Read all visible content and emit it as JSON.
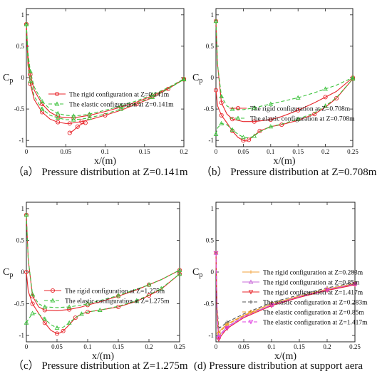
{
  "figure": {
    "captions": [
      "（a） Pressure distribution at Z=0.141m",
      "（b） Pressure distribution at Z=0.708m",
      "（c） Pressure distribution at Z=1.275m",
      "(d) Pressure distribution at support aera"
    ]
  },
  "colors": {
    "rigid": "#e8262b",
    "elastic": "#3cc23c",
    "d_rigid_1": "#f2a23a",
    "d_rigid_2": "#c86ad8",
    "d_rigid_3": "#e8262b",
    "d_elastic_1": "#555555",
    "d_elastic_2": "#f0a020",
    "d_elastic_3": "#e040e0"
  },
  "chart_data": [
    {
      "type": "line",
      "title": "",
      "xlabel": "x/(m)",
      "ylabel": "Cp",
      "xlim": [
        0,
        0.2
      ],
      "ylim": [
        1.1,
        -1.1
      ],
      "xticks": [
        "0",
        "0.05",
        "0.1",
        "0.15",
        "0.2"
      ],
      "yticks": [
        "-1",
        "-0.5",
        "0",
        "0.5",
        "1"
      ],
      "legend_position": "lower-center",
      "series": [
        {
          "name": "The rigid configuration at Z=0.141m",
          "style": "rigid",
          "x": [
            0,
            0.002,
            0.005,
            0.01,
            0.02,
            0.03,
            0.04,
            0.05,
            0.055,
            0.06,
            0.07,
            0.08,
            0.1,
            0.12,
            0.14,
            0.16,
            0.18,
            0.2
          ],
          "y": [
            0.85,
            0.2,
            -0.1,
            -0.35,
            -0.55,
            -0.66,
            -0.71,
            -0.73,
            -0.73,
            -0.72,
            -0.7,
            -0.67,
            -0.6,
            -0.52,
            -0.42,
            -0.32,
            -0.18,
            -0.02
          ]
        },
        {
          "name": "",
          "style": "rigid",
          "x": [
            0,
            0.002,
            0.005,
            0.01,
            0.02,
            0.03,
            0.04,
            0.05,
            0.06,
            0.07,
            0.08,
            0.1,
            0.12,
            0.14,
            0.16,
            0.18,
            0.2
          ],
          "y": [
            0.85,
            0.35,
            0.05,
            -0.2,
            -0.42,
            -0.55,
            -0.62,
            -0.64,
            -0.64,
            -0.62,
            -0.6,
            -0.54,
            -0.47,
            -0.39,
            -0.29,
            -0.17,
            -0.03
          ]
        },
        {
          "name": "",
          "style": "rigid",
          "x": [
            0.055,
            0.06,
            0.065,
            0.07,
            0.075
          ],
          "y": [
            -0.88,
            -0.84,
            -0.78,
            -0.74,
            -0.72
          ]
        },
        {
          "name": "The elastic configuration at Z=0.141m",
          "style": "elastic",
          "x": [
            0,
            0.002,
            0.005,
            0.01,
            0.02,
            0.03,
            0.04,
            0.05,
            0.06,
            0.07,
            0.08,
            0.1,
            0.12,
            0.14,
            0.16,
            0.18,
            0.2
          ],
          "y": [
            0.85,
            0.25,
            -0.05,
            -0.3,
            -0.5,
            -0.6,
            -0.64,
            -0.67,
            -0.67,
            -0.66,
            -0.64,
            -0.58,
            -0.5,
            -0.41,
            -0.31,
            -0.18,
            -0.03
          ]
        },
        {
          "name": "",
          "style": "elastic",
          "x": [
            0,
            0.002,
            0.005,
            0.01,
            0.02,
            0.03,
            0.04,
            0.05,
            0.06,
            0.07,
            0.08,
            0.1,
            0.12,
            0.14,
            0.16,
            0.18,
            0.2
          ],
          "y": [
            0.85,
            0.4,
            0.1,
            -0.15,
            -0.38,
            -0.5,
            -0.57,
            -0.6,
            -0.61,
            -0.6,
            -0.58,
            -0.52,
            -0.45,
            -0.37,
            -0.27,
            -0.16,
            -0.02
          ]
        }
      ]
    },
    {
      "type": "line",
      "title": "",
      "xlabel": "x/(m)",
      "ylabel": "Cp",
      "xlim": [
        0,
        0.25
      ],
      "ylim": [
        1.1,
        -1.1
      ],
      "xticks": [
        "0",
        "0.05",
        "0.1",
        "0.15",
        "0.2",
        "0.25"
      ],
      "yticks": [
        "-1",
        "-0.5",
        "0",
        "0.5",
        "1"
      ],
      "legend_position": "lower-center",
      "series": [
        {
          "name": "The rigid configuration at Z=0.708m",
          "style": "rigid",
          "x": [
            0,
            0.003,
            0.01,
            0.02,
            0.03,
            0.04,
            0.05,
            0.055,
            0.06,
            0.07,
            0.08,
            0.1,
            0.12,
            0.15,
            0.18,
            0.2,
            0.22,
            0.25
          ],
          "y": [
            -0.2,
            -0.45,
            -0.6,
            -0.72,
            -0.85,
            -0.95,
            -1.0,
            -1.01,
            -0.99,
            -0.92,
            -0.85,
            -0.78,
            -0.75,
            -0.68,
            -0.58,
            -0.47,
            -0.33,
            -0.02
          ]
        },
        {
          "name": "",
          "style": "rigid",
          "x": [
            0,
            0.003,
            0.01,
            0.02,
            0.03,
            0.05,
            0.07,
            0.09,
            0.1,
            0.12,
            0.15,
            0.18,
            0.2,
            0.22,
            0.25
          ],
          "y": [
            0.9,
            0.2,
            -0.4,
            -0.58,
            -0.66,
            -0.7,
            -0.7,
            -0.68,
            -0.67,
            -0.62,
            -0.52,
            -0.4,
            -0.31,
            -0.22,
            0.0
          ]
        },
        {
          "name": "The elastic configuration at Z=0.708m",
          "style": "elastic",
          "x": [
            0,
            0.003,
            0.01,
            0.02,
            0.03,
            0.04,
            0.05,
            0.06,
            0.07,
            0.08,
            0.1,
            0.12,
            0.15,
            0.18,
            0.2,
            0.22,
            0.25
          ],
          "y": [
            -0.9,
            -0.8,
            -0.73,
            -0.75,
            -0.83,
            -0.9,
            -0.95,
            -0.96,
            -0.93,
            -0.86,
            -0.78,
            -0.74,
            -0.66,
            -0.56,
            -0.45,
            -0.32,
            -0.02
          ]
        },
        {
          "name": "",
          "style": "elastic",
          "x": [
            0,
            0.003,
            0.01,
            0.02,
            0.03,
            0.05,
            0.07,
            0.09,
            0.1,
            0.12,
            0.15,
            0.18,
            0.2,
            0.22,
            0.25
          ],
          "y": [
            0.9,
            0.2,
            -0.3,
            -0.45,
            -0.5,
            -0.51,
            -0.48,
            -0.44,
            -0.42,
            -0.38,
            -0.32,
            -0.24,
            -0.18,
            -0.12,
            0.0
          ]
        }
      ]
    },
    {
      "type": "line",
      "title": "",
      "xlabel": "x/(m)",
      "ylabel": "Cp",
      "xlim": [
        0,
        0.25
      ],
      "ylim": [
        1.1,
        -1.1
      ],
      "xticks": [
        "0",
        "0.05",
        "0.1",
        "0.15",
        "0.2",
        "0.25"
      ],
      "yticks": [
        "-1",
        "-0.5",
        "0",
        "0.5",
        "1"
      ],
      "legend_position": "lower-center",
      "series": [
        {
          "name": "The rigid configuration at Z=1.275m",
          "style": "rigid",
          "x": [
            0,
            0.003,
            0.01,
            0.02,
            0.03,
            0.04,
            0.05,
            0.055,
            0.06,
            0.07,
            0.08,
            0.09,
            0.1,
            0.12,
            0.15,
            0.18,
            0.2,
            0.22,
            0.25
          ],
          "y": [
            0.0,
            -0.3,
            -0.5,
            -0.65,
            -0.8,
            -0.92,
            -0.97,
            -0.96,
            -0.93,
            -0.83,
            -0.72,
            -0.66,
            -0.63,
            -0.6,
            -0.55,
            -0.46,
            -0.37,
            -0.27,
            -0.03
          ]
        },
        {
          "name": "",
          "style": "rigid",
          "x": [
            0,
            0.003,
            0.01,
            0.02,
            0.03,
            0.05,
            0.07,
            0.09,
            0.1,
            0.12,
            0.15,
            0.18,
            0.2,
            0.22,
            0.25
          ],
          "y": [
            0.9,
            0.2,
            -0.38,
            -0.55,
            -0.6,
            -0.61,
            -0.59,
            -0.55,
            -0.52,
            -0.47,
            -0.38,
            -0.28,
            -0.2,
            -0.12,
            0.03
          ]
        },
        {
          "name": "The elastic configuration at Z=1.275m",
          "style": "elastic",
          "x": [
            0,
            0.003,
            0.01,
            0.02,
            0.03,
            0.04,
            0.05,
            0.06,
            0.07,
            0.08,
            0.09,
            0.1,
            0.12,
            0.15,
            0.18,
            0.2,
            0.22,
            0.25
          ],
          "y": [
            -0.8,
            -0.75,
            -0.65,
            -0.66,
            -0.74,
            -0.83,
            -0.88,
            -0.87,
            -0.8,
            -0.72,
            -0.66,
            -0.63,
            -0.6,
            -0.54,
            -0.45,
            -0.36,
            -0.26,
            -0.03
          ]
        },
        {
          "name": "",
          "style": "elastic",
          "x": [
            0,
            0.003,
            0.01,
            0.02,
            0.03,
            0.05,
            0.07,
            0.09,
            0.1,
            0.12,
            0.15,
            0.18,
            0.2,
            0.22,
            0.25
          ],
          "y": [
            0.9,
            0.2,
            -0.35,
            -0.5,
            -0.55,
            -0.56,
            -0.55,
            -0.52,
            -0.5,
            -0.45,
            -0.37,
            -0.27,
            -0.2,
            -0.12,
            0.03
          ]
        }
      ]
    },
    {
      "type": "line",
      "title": "",
      "xlabel": "x/(m)",
      "ylabel": "Cp",
      "xlim": [
        0,
        0.25
      ],
      "ylim": [
        1.1,
        -1.1
      ],
      "xticks": [
        "0",
        "0.05",
        "0.1",
        "0.15",
        "0.2",
        "0.25"
      ],
      "yticks": [
        "-1",
        "-0.5",
        "0",
        "0.5",
        "1"
      ],
      "legend_position": "lower-center",
      "series": [
        {
          "name": "The rigid configuration at Z=0.283m",
          "style": "d_rigid_1",
          "x": [
            0,
            0.002,
            0.005,
            0.01,
            0.02,
            0.05,
            0.1,
            0.15,
            0.2,
            0.24,
            0.25
          ],
          "y": [
            0.3,
            -0.6,
            -0.95,
            -0.9,
            -0.82,
            -0.68,
            -0.5,
            -0.38,
            -0.27,
            -0.2,
            -0.18
          ]
        },
        {
          "name": "The rigid configuration at Z=0.85m",
          "style": "d_rigid_2",
          "x": [
            0,
            0.002,
            0.005,
            0.01,
            0.02,
            0.05,
            0.1,
            0.15,
            0.2,
            0.24,
            0.25
          ],
          "y": [
            0.3,
            -0.65,
            -1.02,
            -0.96,
            -0.86,
            -0.7,
            -0.52,
            -0.39,
            -0.28,
            -0.21,
            -0.19
          ]
        },
        {
          "name": "The rigid configuration at Z=1.417m",
          "style": "d_rigid_3",
          "x": [
            0,
            0.002,
            0.005,
            0.01,
            0.02,
            0.05,
            0.1,
            0.15,
            0.2,
            0.24,
            0.25
          ],
          "y": [
            0.3,
            -0.7,
            -1.06,
            -1.0,
            -0.89,
            -0.72,
            -0.53,
            -0.4,
            -0.29,
            -0.22,
            -0.2
          ]
        },
        {
          "name": "The elastic configuration at Z=0.283m",
          "style": "d_elastic_1",
          "x": [
            0,
            0.002,
            0.005,
            0.01,
            0.02,
            0.05,
            0.1,
            0.15,
            0.2,
            0.24,
            0.25
          ],
          "y": [
            0.3,
            -0.55,
            -0.88,
            -0.86,
            -0.79,
            -0.66,
            -0.48,
            -0.36,
            -0.25,
            -0.18,
            -0.16
          ]
        },
        {
          "name": "The elastic configuration at Z=0.85m",
          "style": "d_elastic_2",
          "x": [
            0,
            0.002,
            0.005,
            0.01,
            0.02,
            0.05,
            0.1,
            0.15,
            0.2,
            0.24,
            0.25
          ],
          "y": [
            0.3,
            -0.6,
            -0.97,
            -0.92,
            -0.83,
            -0.69,
            -0.5,
            -0.38,
            -0.27,
            -0.2,
            -0.18
          ]
        },
        {
          "name": "The elastic configuration at Z=1.417m",
          "style": "d_elastic_3",
          "x": [
            0,
            0.002,
            0.005,
            0.01,
            0.02,
            0.05,
            0.1,
            0.15,
            0.2,
            0.24,
            0.25
          ],
          "y": [
            0.3,
            -0.68,
            -1.04,
            -0.98,
            -0.88,
            -0.71,
            -0.52,
            -0.39,
            -0.28,
            -0.21,
            -0.19
          ]
        }
      ]
    }
  ]
}
